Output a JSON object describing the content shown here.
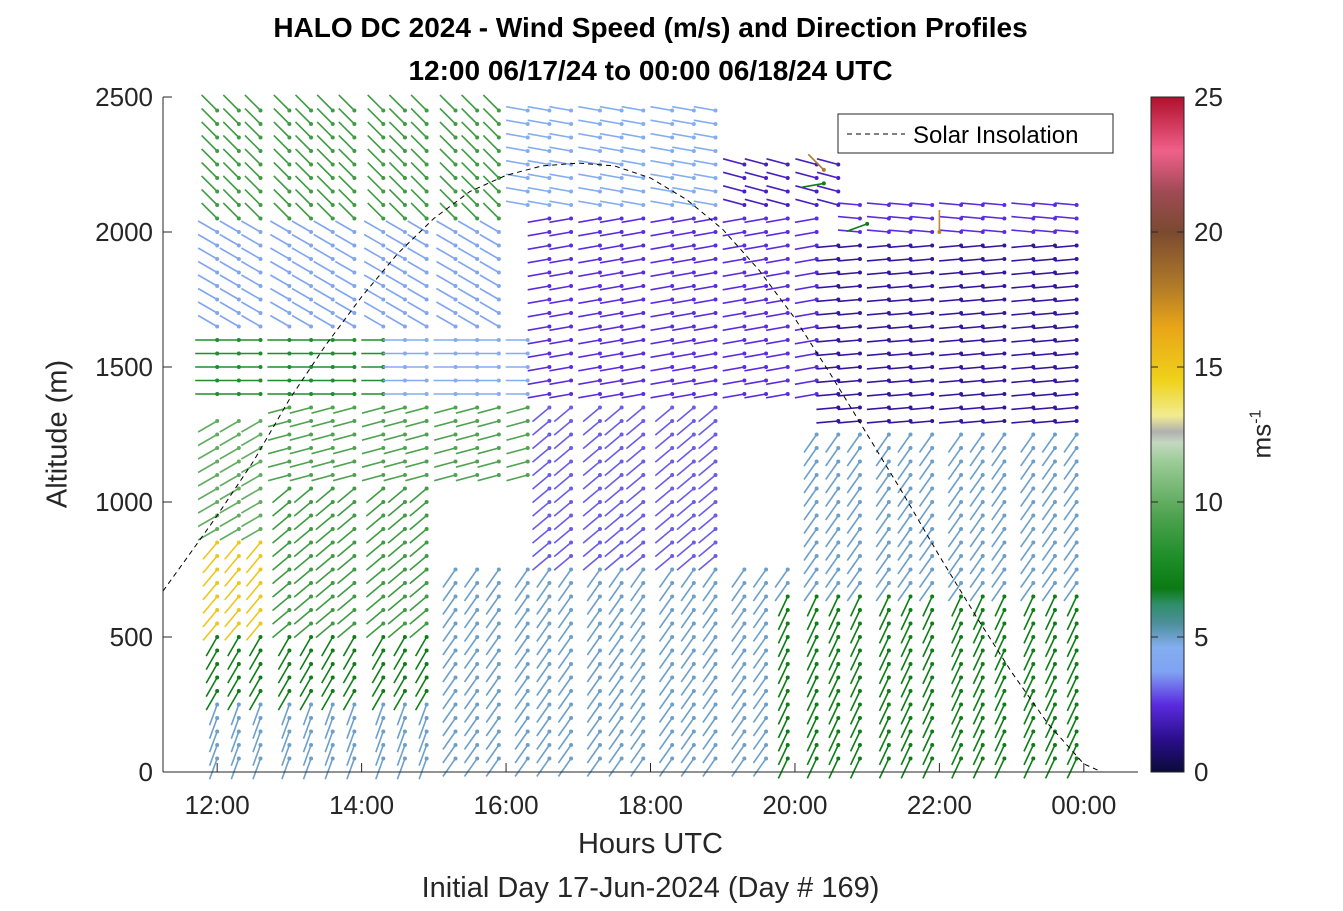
{
  "chart_data": {
    "type": "wind-barb-profile",
    "title": "HALO DC 2024 - Wind Speed (m/s) and Direction Profiles",
    "subtitle": "12:00 06/17/24 to 00:00 06/18/24  UTC",
    "xlabel": "Hours UTC",
    "x_sublabel": "Initial Day 17-Jun-2024 (Day # 169)",
    "ylabel": "Altitude (m)",
    "xlim": [
      11.25,
      24.75
    ],
    "ylim": [
      0,
      2500
    ],
    "x_ticks": [
      12,
      14,
      16,
      18,
      20,
      22,
      24
    ],
    "x_tick_labels": [
      "12:00",
      "14:00",
      "16:00",
      "18:00",
      "20:00",
      "22:00",
      "00:00"
    ],
    "y_ticks": [
      0,
      500,
      1000,
      1500,
      2000,
      2500
    ],
    "y_tick_labels": [
      "0",
      "500",
      "1000",
      "1500",
      "2000",
      "2500"
    ],
    "colorbar": {
      "label": "ms",
      "label_exponent": "-1",
      "range": [
        0,
        25
      ],
      "ticks": [
        0,
        5,
        10,
        15,
        20,
        25
      ],
      "tick_labels": [
        "0",
        "5",
        "10",
        "15",
        "20",
        "25"
      ],
      "stops": [
        {
          "v": 0,
          "c": "#0b0b3a"
        },
        {
          "v": 1.2,
          "c": "#2a0e8a"
        },
        {
          "v": 2.5,
          "c": "#5b2be0"
        },
        {
          "v": 3.7,
          "c": "#7fa2f2"
        },
        {
          "v": 4.6,
          "c": "#84aef0"
        },
        {
          "v": 5.5,
          "c": "#4d8f9c"
        },
        {
          "v": 6.2,
          "c": "#2f8f6a"
        },
        {
          "v": 6.8,
          "c": "#0a7a12"
        },
        {
          "v": 8.0,
          "c": "#1f8f2a"
        },
        {
          "v": 9.5,
          "c": "#4fa350"
        },
        {
          "v": 11.5,
          "c": "#9ccc98"
        },
        {
          "v": 12.2,
          "c": "#c4d8c0"
        },
        {
          "v": 12.6,
          "c": "#b0b0b0"
        },
        {
          "v": 13.2,
          "c": "#f2ec90"
        },
        {
          "v": 14.5,
          "c": "#efd21a"
        },
        {
          "v": 16.5,
          "c": "#e8a418"
        },
        {
          "v": 18.0,
          "c": "#b07a28"
        },
        {
          "v": 20.0,
          "c": "#7a4a30"
        },
        {
          "v": 21.5,
          "c": "#a04a55"
        },
        {
          "v": 23.0,
          "c": "#f0608a"
        },
        {
          "v": 25.0,
          "c": "#b0102c"
        }
      ]
    },
    "legend": {
      "entries": [
        "Solar Insolation"
      ],
      "placement": "top-right"
    },
    "solar_insolation": {
      "style": "dashed",
      "color": "#000000",
      "x": [
        11.25,
        11.6,
        12.0,
        12.5,
        13.0,
        13.5,
        14.0,
        14.5,
        15.0,
        15.5,
        16.0,
        16.5,
        17.0,
        17.5,
        18.0,
        18.5,
        19.0,
        19.5,
        20.0,
        20.5,
        21.0,
        21.5,
        22.0,
        22.5,
        23.0,
        23.5,
        24.0,
        24.25,
        24.5
      ],
      "y": [
        670,
        800,
        950,
        1150,
        1380,
        1580,
        1760,
        1920,
        2050,
        2150,
        2210,
        2245,
        2255,
        2245,
        2200,
        2120,
        2010,
        1860,
        1680,
        1470,
        1250,
        1030,
        800,
        580,
        370,
        180,
        30,
        0,
        0
      ]
    },
    "profile_times": [
      12.0,
      12.3,
      12.6,
      13.0,
      13.3,
      13.6,
      13.9,
      14.3,
      14.6,
      14.9,
      15.3,
      15.6,
      15.9,
      16.3,
      16.6,
      16.9,
      17.3,
      17.6,
      17.9,
      18.3,
      18.6,
      18.9,
      19.3,
      19.6,
      19.9,
      20.3,
      20.6,
      20.9,
      21.3,
      21.6,
      21.9,
      22.3,
      22.6,
      22.9,
      23.3,
      23.6,
      23.9
    ],
    "level_step_m": 50,
    "wind_fields": [
      {
        "x": [
          11.5,
          15.0
        ],
        "y": [
          0,
          300
        ],
        "speed": 5.0,
        "dir": 200
      },
      {
        "x": [
          11.5,
          15.0
        ],
        "y": [
          300,
          550
        ],
        "speed": 7.0,
        "dir": 210
      },
      {
        "x": [
          11.5,
          12.9
        ],
        "y": [
          550,
          900
        ],
        "speed": 15.0,
        "dir": 220
      },
      {
        "x": [
          12.9,
          15.0
        ],
        "y": [
          550,
          1100
        ],
        "speed": 9.0,
        "dir": 230
      },
      {
        "x": [
          11.5,
          12.9
        ],
        "y": [
          900,
          1350
        ],
        "speed": 10.0,
        "dir": 240
      },
      {
        "x": [
          12.9,
          16.5
        ],
        "y": [
          1100,
          1400
        ],
        "speed": 9.5,
        "dir": 255
      },
      {
        "x": [
          11.5,
          14.5
        ],
        "y": [
          1400,
          1650
        ],
        "speed": 8.0,
        "dir": 270
      },
      {
        "x": [
          14.5,
          16.5
        ],
        "y": [
          1400,
          1650
        ],
        "speed": 4.5,
        "dir": 270
      },
      {
        "x": [
          11.5,
          16.0
        ],
        "y": [
          1650,
          2050
        ],
        "speed": 4.0,
        "dir": 300
      },
      {
        "x": [
          11.5,
          16.0
        ],
        "y": [
          2050,
          2500
        ],
        "speed": 9.0,
        "dir": 315
      },
      {
        "x": [
          15.0,
          20.0
        ],
        "y": [
          0,
          800
        ],
        "speed": 5.0,
        "dir": 215
      },
      {
        "x": [
          16.5,
          19.0
        ],
        "y": [
          800,
          1400
        ],
        "speed": 3.0,
        "dir": 230
      },
      {
        "x": [
          16.5,
          20.5
        ],
        "y": [
          1400,
          2100
        ],
        "speed": 2.5,
        "dir": 260
      },
      {
        "x": [
          16.0,
          19.0
        ],
        "y": [
          2100,
          2500
        ],
        "speed": 4.5,
        "dir": 280
      },
      {
        "x": [
          19.0,
          20.9
        ],
        "y": [
          2100,
          2300
        ],
        "speed": 2.0,
        "dir": 285
      },
      {
        "x": [
          19.8,
          24.0
        ],
        "y": [
          0,
          700
        ],
        "speed": 7.0,
        "dir": 205
      },
      {
        "x": [
          20.0,
          24.0
        ],
        "y": [
          700,
          1300
        ],
        "speed": 5.0,
        "dir": 215
      },
      {
        "x": [
          20.5,
          24.0
        ],
        "y": [
          1300,
          2000
        ],
        "speed": 1.5,
        "dir": 265
      },
      {
        "x": [
          20.9,
          24.0
        ],
        "y": [
          2000,
          2150
        ],
        "speed": 2.5,
        "dir": 275
      }
    ],
    "notable_barbs": [
      {
        "t": 20.4,
        "alt": 2230,
        "speed": 18.0,
        "dir": 315
      },
      {
        "t": 22.0,
        "alt": 2000,
        "speed": 17.5,
        "dir": 0
      },
      {
        "t": 20.4,
        "alt": 2180,
        "speed": 7.0,
        "dir": 260
      },
      {
        "t": 21.0,
        "alt": 2030,
        "speed": 7.0,
        "dir": 250
      }
    ]
  }
}
